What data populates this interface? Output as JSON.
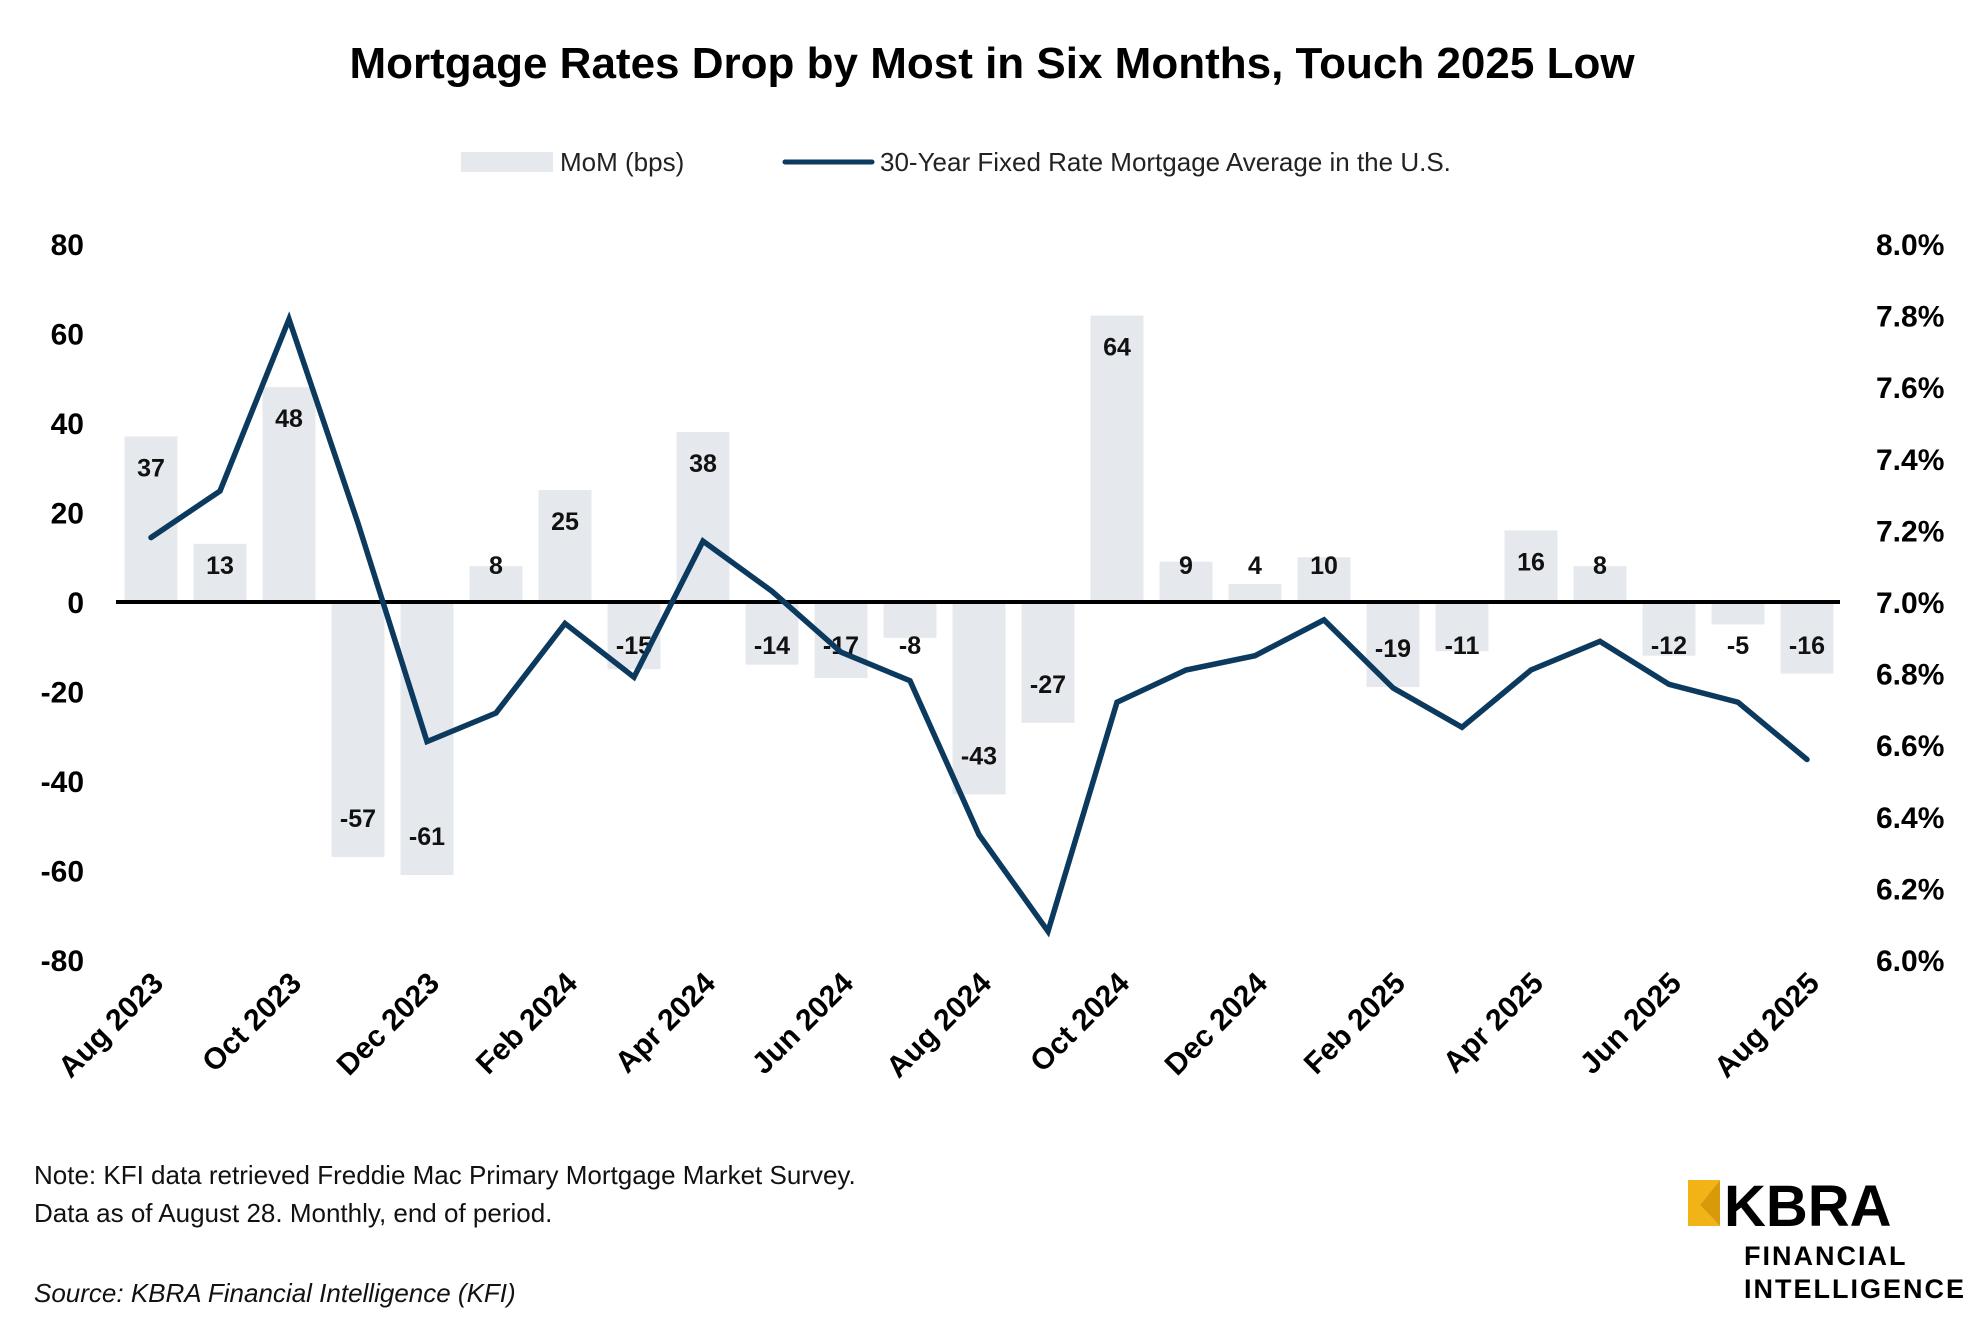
{
  "chart_data": {
    "type": "bar+line",
    "title": "Mortgage Rates Drop by Most in Six Months, Touch 2025 Low",
    "categories": [
      "Aug 2023",
      "Sep 2023",
      "Oct 2023",
      "Nov 2023",
      "Dec 2023",
      "Jan 2024",
      "Feb 2024",
      "Mar 2024",
      "Apr 2024",
      "May 2024",
      "Jun 2024",
      "Jul 2024",
      "Aug 2024",
      "Sep 2024",
      "Oct 2024",
      "Nov 2024",
      "Dec 2024",
      "Jan 2025",
      "Feb 2025",
      "Mar 2025",
      "Apr 2025",
      "May 2025",
      "Jun 2025",
      "Jul 2025",
      "Aug 2025"
    ],
    "x_tick_labels": [
      "Aug 2023",
      "Oct 2023",
      "Dec 2023",
      "Feb 2024",
      "Apr 2024",
      "Jun 2024",
      "Aug 2024",
      "Oct 2024",
      "Dec 2024",
      "Feb 2025",
      "Apr 2025",
      "Jun 2025",
      "Aug 2025"
    ],
    "series": [
      {
        "name": "MoM (bps)",
        "type": "bar",
        "axis": "left",
        "color": "#e5e8ed",
        "values": [
          37,
          13,
          48,
          -57,
          -61,
          8,
          25,
          -15,
          38,
          -14,
          -17,
          -8,
          -43,
          -27,
          64,
          9,
          4,
          10,
          -19,
          -11,
          16,
          8,
          -12,
          -5,
          -16
        ]
      },
      {
        "name": "30-Year Fixed Rate Mortgage Average in the U.S.",
        "type": "line",
        "axis": "right",
        "color": "#0b3a5e",
        "values": [
          7.18,
          7.31,
          7.79,
          7.22,
          6.61,
          6.69,
          6.94,
          6.79,
          7.17,
          7.03,
          6.86,
          6.78,
          6.35,
          6.08,
          6.72,
          6.81,
          6.85,
          6.95,
          6.76,
          6.65,
          6.81,
          6.89,
          6.77,
          6.72,
          6.56
        ]
      }
    ],
    "y_left": {
      "range": [
        -80,
        80
      ],
      "ticks": [
        "80",
        "60",
        "40",
        "20",
        "0",
        "-20",
        "-40",
        "-60",
        "-80"
      ]
    },
    "y_right": {
      "range": [
        6.0,
        8.0
      ],
      "ticks": [
        "8.0%",
        "7.8%",
        "7.6%",
        "7.4%",
        "7.2%",
        "7.0%",
        "6.8%",
        "6.6%",
        "6.4%",
        "6.2%",
        "6.0%"
      ]
    },
    "grid": false,
    "legend_position": "top-center"
  },
  "notes": {
    "line1": "Note: KFI data retrieved Freddie Mac Primary Mortgage Market Survey.",
    "line2": "Data as of August 28. Monthly, end of period.",
    "source": "Source: KBRA Financial Intelligence (KFI)"
  },
  "logo": {
    "word": "KBRA",
    "line1": "FINANCIAL",
    "line2": "INTELLIGENCE",
    "accent": "#f2b316"
  }
}
